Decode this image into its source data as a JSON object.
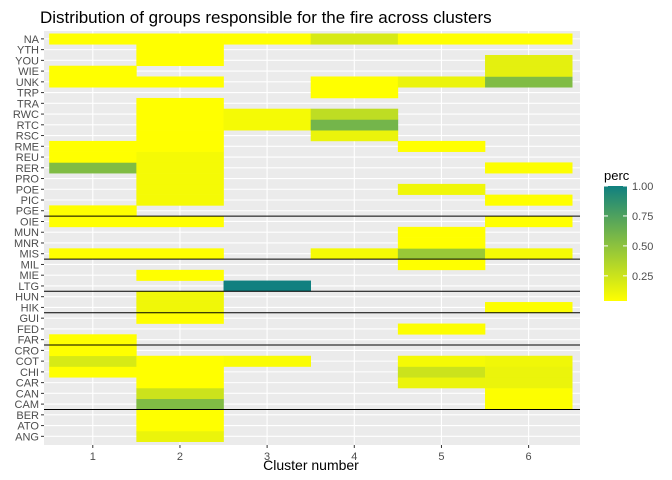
{
  "chart_data": {
    "type": "heatmap",
    "title": "Distribution of groups responsible for the fire across clusters",
    "xlabel": "Cluster number",
    "ylabel": "",
    "x_categories": [
      "1",
      "2",
      "3",
      "4",
      "5",
      "6"
    ],
    "y_categories": [
      "ANG",
      "ATO",
      "BER",
      "CAM",
      "CAN",
      "CAR",
      "CHI",
      "COT",
      "CRO",
      "FAR",
      "FED",
      "GUI",
      "HIK",
      "HUN",
      "LTG",
      "MIE",
      "MIL",
      "MIS",
      "MNR",
      "MUN",
      "OIE",
      "PGE",
      "PIC",
      "POE",
      "PRO",
      "RER",
      "REU",
      "RME",
      "RSC",
      "RTC",
      "RWC",
      "TRA",
      "TRP",
      "UNK",
      "WIE",
      "YOU",
      "YTH",
      "NA"
    ],
    "cells": [
      {
        "x": "2",
        "y": "ANG",
        "v": 0.12
      },
      {
        "x": "2",
        "y": "ATO",
        "v": 0.04
      },
      {
        "x": "2",
        "y": "BER",
        "v": 0.04
      },
      {
        "x": "2",
        "y": "CAM",
        "v": 0.55
      },
      {
        "x": "6",
        "y": "CAM",
        "v": 0.05
      },
      {
        "x": "2",
        "y": "CAN",
        "v": 0.25
      },
      {
        "x": "6",
        "y": "CAN",
        "v": 0.05
      },
      {
        "x": "2",
        "y": "CAR",
        "v": 0.04
      },
      {
        "x": "5",
        "y": "CAR",
        "v": 0.12
      },
      {
        "x": "6",
        "y": "CAR",
        "v": 0.12
      },
      {
        "x": "1",
        "y": "CHI",
        "v": 0.04
      },
      {
        "x": "2",
        "y": "CHI",
        "v": 0.04
      },
      {
        "x": "5",
        "y": "CHI",
        "v": 0.25
      },
      {
        "x": "6",
        "y": "CHI",
        "v": 0.12
      },
      {
        "x": "1",
        "y": "COT",
        "v": 0.2
      },
      {
        "x": "2",
        "y": "COT",
        "v": 0.04
      },
      {
        "x": "3",
        "y": "COT",
        "v": 0.06
      },
      {
        "x": "5",
        "y": "COT",
        "v": 0.08
      },
      {
        "x": "6",
        "y": "COT",
        "v": 0.1
      },
      {
        "x": "1",
        "y": "CRO",
        "v": 0.04
      },
      {
        "x": "1",
        "y": "FAR",
        "v": 0.04
      },
      {
        "x": "5",
        "y": "FED",
        "v": 0.05
      },
      {
        "x": "2",
        "y": "GUI",
        "v": 0.04
      },
      {
        "x": "2",
        "y": "HIK",
        "v": 0.1
      },
      {
        "x": "6",
        "y": "HIK",
        "v": 0.05
      },
      {
        "x": "2",
        "y": "HUN",
        "v": 0.1
      },
      {
        "x": "3",
        "y": "LTG",
        "v": 1.0
      },
      {
        "x": "2",
        "y": "MIE",
        "v": 0.04
      },
      {
        "x": "5",
        "y": "MIL",
        "v": 0.04
      },
      {
        "x": "1",
        "y": "MIS",
        "v": 0.04
      },
      {
        "x": "2",
        "y": "MIS",
        "v": 0.04
      },
      {
        "x": "4",
        "y": "MIS",
        "v": 0.08
      },
      {
        "x": "5",
        "y": "MIS",
        "v": 0.45
      },
      {
        "x": "6",
        "y": "MIS",
        "v": 0.08
      },
      {
        "x": "5",
        "y": "MNR",
        "v": 0.04
      },
      {
        "x": "5",
        "y": "MUN",
        "v": 0.04
      },
      {
        "x": "1",
        "y": "OIE",
        "v": 0.04
      },
      {
        "x": "2",
        "y": "OIE",
        "v": 0.04
      },
      {
        "x": "6",
        "y": "OIE",
        "v": 0.04
      },
      {
        "x": "1",
        "y": "PGE",
        "v": 0.04
      },
      {
        "x": "2",
        "y": "PIC",
        "v": 0.08
      },
      {
        "x": "6",
        "y": "PIC",
        "v": 0.04
      },
      {
        "x": "2",
        "y": "POE",
        "v": 0.08
      },
      {
        "x": "5",
        "y": "POE",
        "v": 0.1
      },
      {
        "x": "2",
        "y": "PRO",
        "v": 0.08
      },
      {
        "x": "1",
        "y": "RER",
        "v": 0.55
      },
      {
        "x": "2",
        "y": "RER",
        "v": 0.08
      },
      {
        "x": "6",
        "y": "RER",
        "v": 0.05
      },
      {
        "x": "1",
        "y": "REU",
        "v": 0.04
      },
      {
        "x": "2",
        "y": "REU",
        "v": 0.08
      },
      {
        "x": "1",
        "y": "RME",
        "v": 0.04
      },
      {
        "x": "2",
        "y": "RME",
        "v": 0.04
      },
      {
        "x": "5",
        "y": "RME",
        "v": 0.04
      },
      {
        "x": "2",
        "y": "RSC",
        "v": 0.04
      },
      {
        "x": "4",
        "y": "RSC",
        "v": 0.12
      },
      {
        "x": "2",
        "y": "RTC",
        "v": 0.04
      },
      {
        "x": "3",
        "y": "RTC",
        "v": 0.08
      },
      {
        "x": "4",
        "y": "RTC",
        "v": 0.6
      },
      {
        "x": "2",
        "y": "RWC",
        "v": 0.04
      },
      {
        "x": "3",
        "y": "RWC",
        "v": 0.08
      },
      {
        "x": "4",
        "y": "RWC",
        "v": 0.3
      },
      {
        "x": "2",
        "y": "TRA",
        "v": 0.04
      },
      {
        "x": "4",
        "y": "TRP",
        "v": 0.04
      },
      {
        "x": "1",
        "y": "UNK",
        "v": 0.04
      },
      {
        "x": "2",
        "y": "UNK",
        "v": 0.04
      },
      {
        "x": "4",
        "y": "UNK",
        "v": 0.04
      },
      {
        "x": "5",
        "y": "UNK",
        "v": 0.12
      },
      {
        "x": "6",
        "y": "UNK",
        "v": 0.55
      },
      {
        "x": "1",
        "y": "WIE",
        "v": 0.04
      },
      {
        "x": "6",
        "y": "WIE",
        "v": 0.15
      },
      {
        "x": "2",
        "y": "YOU",
        "v": 0.04
      },
      {
        "x": "6",
        "y": "YOU",
        "v": 0.15
      },
      {
        "x": "2",
        "y": "YTH",
        "v": 0.04
      },
      {
        "x": "1",
        "y": "NA",
        "v": 0.04
      },
      {
        "x": "2",
        "y": "NA",
        "v": 0.04
      },
      {
        "x": "3",
        "y": "NA",
        "v": 0.04
      },
      {
        "x": "4",
        "y": "NA",
        "v": 0.2
      },
      {
        "x": "5",
        "y": "NA",
        "v": 0.04
      },
      {
        "x": "6",
        "y": "NA",
        "v": 0.04
      }
    ],
    "separator_after": [
      "BER",
      "CRO",
      "GUI",
      "HUN",
      "MIL",
      "OIE"
    ],
    "colorscale": {
      "low": "#FFFF00",
      "high": "#108080",
      "limits": [
        0.04,
        1.0
      ]
    },
    "legend": {
      "title": "perc",
      "ticks": [
        1.0,
        0.75,
        0.5,
        0.25
      ],
      "tick_labels": [
        "1.00",
        "0.75",
        "0.50",
        "0.25"
      ],
      "position": "right"
    },
    "background": "#EBEBEB",
    "grid": true
  }
}
